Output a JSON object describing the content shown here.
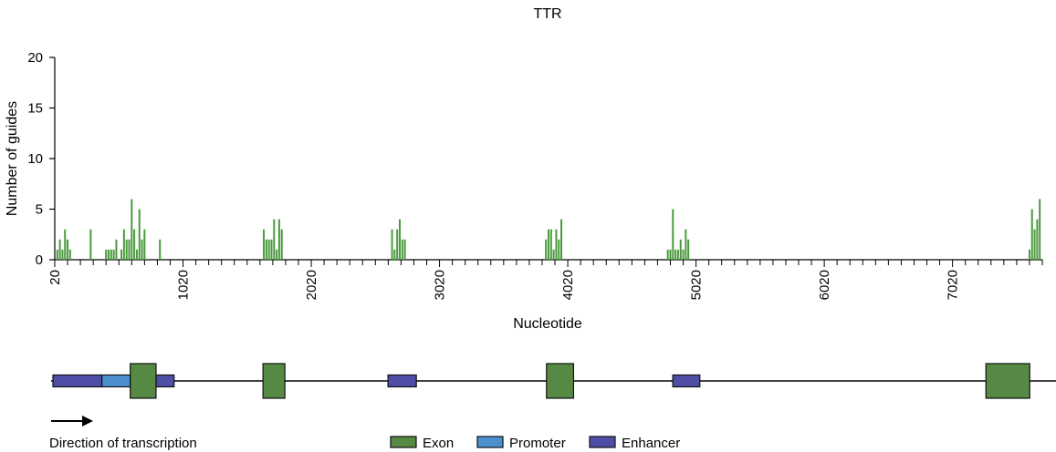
{
  "chart_data": {
    "type": "bar",
    "title": "TTR",
    "xlabel": "Nucleotide",
    "ylabel": "Number of guides",
    "xlim": [
      20,
      7720
    ],
    "ylim": [
      0,
      20
    ],
    "y_ticks": [
      0,
      5,
      10,
      15,
      20
    ],
    "x_tick_labels": [
      20,
      1020,
      2020,
      3020,
      4020,
      5020,
      6020,
      7020
    ],
    "x_minor_step": 100,
    "grid": false,
    "bar_color": "#4a9a3e",
    "values": [
      [
        40,
        1
      ],
      [
        60,
        2
      ],
      [
        80,
        1
      ],
      [
        100,
        3
      ],
      [
        120,
        2
      ],
      [
        140,
        1
      ],
      [
        300,
        3
      ],
      [
        420,
        1
      ],
      [
        440,
        1
      ],
      [
        460,
        1
      ],
      [
        480,
        1
      ],
      [
        500,
        2
      ],
      [
        540,
        1
      ],
      [
        560,
        3
      ],
      [
        580,
        2
      ],
      [
        600,
        2
      ],
      [
        620,
        6
      ],
      [
        640,
        3
      ],
      [
        660,
        1
      ],
      [
        680,
        5
      ],
      [
        700,
        2
      ],
      [
        720,
        3
      ],
      [
        840,
        2
      ],
      [
        1650,
        3
      ],
      [
        1670,
        2
      ],
      [
        1690,
        2
      ],
      [
        1710,
        2
      ],
      [
        1730,
        4
      ],
      [
        1750,
        1
      ],
      [
        1770,
        4
      ],
      [
        1790,
        3
      ],
      [
        2650,
        3
      ],
      [
        2670,
        1
      ],
      [
        2690,
        3
      ],
      [
        2710,
        4
      ],
      [
        2730,
        2
      ],
      [
        2750,
        2
      ],
      [
        3850,
        2
      ],
      [
        3870,
        3
      ],
      [
        3890,
        3
      ],
      [
        3910,
        1
      ],
      [
        3930,
        3
      ],
      [
        3950,
        2
      ],
      [
        3970,
        4
      ],
      [
        4800,
        1
      ],
      [
        4820,
        1
      ],
      [
        4840,
        5
      ],
      [
        4860,
        1
      ],
      [
        4880,
        1
      ],
      [
        4900,
        2
      ],
      [
        4920,
        1
      ],
      [
        4940,
        3
      ],
      [
        4960,
        2
      ],
      [
        7620,
        1
      ],
      [
        7640,
        5
      ],
      [
        7660,
        3
      ],
      [
        7680,
        4
      ],
      [
        7700,
        6
      ]
    ]
  },
  "gene_track": {
    "colors": {
      "exon": "#568a44",
      "promoter": "#4c90d0",
      "enhancer": "#4e4ea6"
    },
    "features": [
      {
        "type": "enhancer",
        "start": 0,
        "end": 380
      },
      {
        "type": "promoter",
        "start": 380,
        "end": 600
      },
      {
        "type": "enhancer",
        "start": 800,
        "end": 940
      },
      {
        "type": "exon",
        "start": 600,
        "end": 800
      },
      {
        "type": "exon",
        "start": 1630,
        "end": 1800
      },
      {
        "type": "enhancer",
        "start": 2600,
        "end": 2820
      },
      {
        "type": "exon",
        "start": 3830,
        "end": 4040
      },
      {
        "type": "enhancer",
        "start": 4810,
        "end": 5020
      },
      {
        "type": "exon",
        "start": 7240,
        "end": 7580
      }
    ],
    "direction_label": "Direction of transcription"
  },
  "legend": {
    "items": [
      {
        "label": "Exon",
        "color": "#568a44"
      },
      {
        "label": "Promoter",
        "color": "#4c90d0"
      },
      {
        "label": "Enhancer",
        "color": "#4e4ea6"
      }
    ]
  }
}
